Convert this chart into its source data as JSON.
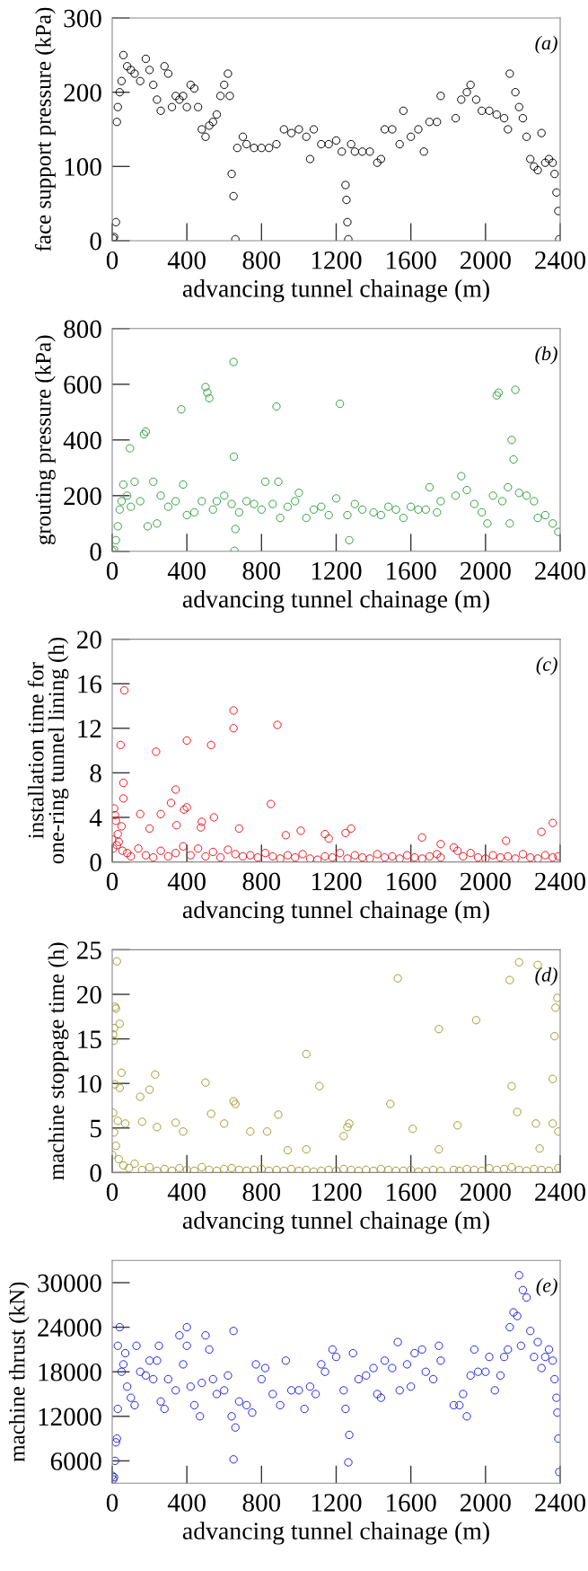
{
  "chart_data": [
    {
      "type": "scatter",
      "xlabel": "advancing tunnel chainage (m)",
      "ylabel": "face support pressure (kPa)",
      "annotations": [
        "(a)"
      ],
      "marker": "circle",
      "xlim": [
        0,
        2400
      ],
      "ylim": [
        0,
        300
      ],
      "xticks": [
        0,
        400,
        800,
        1200,
        1600,
        2000,
        2400
      ],
      "yticks": [
        0,
        100,
        200,
        300
      ],
      "series": [
        {
          "color": "#000000",
          "x": [
            5,
            10,
            20,
            25,
            30,
            40,
            50,
            60,
            80,
            100,
            120,
            150,
            180,
            200,
            220,
            240,
            260,
            280,
            300,
            320,
            340,
            360,
            380,
            400,
            420,
            440,
            460,
            480,
            500,
            520,
            540,
            560,
            580,
            600,
            620,
            630,
            640,
            650,
            660,
            670,
            700,
            720,
            760,
            800,
            840,
            880,
            920,
            960,
            1000,
            1040,
            1060,
            1080,
            1120,
            1160,
            1200,
            1230,
            1250,
            1255,
            1260,
            1265,
            1280,
            1300,
            1340,
            1380,
            1420,
            1440,
            1460,
            1500,
            1540,
            1560,
            1600,
            1640,
            1670,
            1700,
            1740,
            1760,
            1840,
            1870,
            1900,
            1920,
            1950,
            1980,
            2020,
            2060,
            2100,
            2120,
            2130,
            2160,
            2180,
            2200,
            2220,
            2240,
            2260,
            2280,
            2300,
            2320,
            2340,
            2360,
            2370,
            2380,
            2390,
            2395
          ],
          "values": [
            3,
            5,
            25,
            160,
            180,
            200,
            215,
            250,
            235,
            230,
            225,
            215,
            245,
            230,
            210,
            190,
            175,
            235,
            225,
            180,
            195,
            190,
            195,
            180,
            210,
            205,
            180,
            150,
            140,
            155,
            160,
            170,
            195,
            210,
            225,
            195,
            90,
            60,
            2,
            125,
            140,
            130,
            125,
            125,
            125,
            130,
            150,
            145,
            150,
            140,
            110,
            150,
            130,
            130,
            135,
            120,
            75,
            55,
            25,
            2,
            130,
            120,
            120,
            120,
            105,
            110,
            150,
            150,
            130,
            175,
            140,
            150,
            120,
            160,
            160,
            195,
            165,
            190,
            200,
            210,
            190,
            175,
            175,
            170,
            165,
            150,
            225,
            200,
            180,
            165,
            140,
            110,
            100,
            95,
            145,
            105,
            110,
            105,
            90,
            65,
            40,
            2
          ]
        }
      ]
    },
    {
      "type": "scatter",
      "xlabel": "advancing tunnel chainage (m)",
      "ylabel": "grouting pressure (kPa)",
      "annotations": [
        "(b)"
      ],
      "marker": "circle",
      "xlim": [
        0,
        2400
      ],
      "ylim": [
        0,
        800
      ],
      "xticks": [
        0,
        400,
        800,
        1200,
        1600,
        2000,
        2400
      ],
      "yticks": [
        0,
        200,
        400,
        600,
        800
      ],
      "series": [
        {
          "color": "#2e9e3e",
          "x": [
            0,
            10,
            20,
            30,
            40,
            50,
            60,
            80,
            95,
            100,
            120,
            150,
            170,
            180,
            190,
            220,
            240,
            260,
            300,
            340,
            370,
            380,
            400,
            440,
            480,
            500,
            510,
            520,
            540,
            560,
            600,
            640,
            650,
            652,
            655,
            660,
            680,
            720,
            760,
            800,
            820,
            860,
            880,
            890,
            900,
            940,
            980,
            1000,
            1040,
            1080,
            1120,
            1160,
            1200,
            1220,
            1260,
            1270,
            1300,
            1340,
            1400,
            1440,
            1480,
            1520,
            1560,
            1600,
            1640,
            1680,
            1700,
            1740,
            1760,
            1840,
            1870,
            1900,
            1940,
            1980,
            2010,
            2040,
            2060,
            2070,
            2090,
            2120,
            2130,
            2140,
            2150,
            2160,
            2180,
            2220,
            2260,
            2280,
            2320,
            2360,
            2390
          ],
          "values": [
            2,
            5,
            40,
            90,
            150,
            180,
            240,
            200,
            370,
            160,
            250,
            180,
            420,
            430,
            90,
            250,
            100,
            200,
            160,
            180,
            510,
            240,
            130,
            140,
            180,
            590,
            570,
            550,
            150,
            180,
            200,
            170,
            680,
            340,
            2,
            80,
            140,
            180,
            170,
            150,
            250,
            170,
            520,
            250,
            120,
            160,
            180,
            210,
            120,
            150,
            160,
            130,
            190,
            530,
            130,
            40,
            170,
            150,
            140,
            130,
            160,
            150,
            120,
            160,
            150,
            150,
            230,
            140,
            180,
            200,
            270,
            220,
            170,
            140,
            100,
            200,
            560,
            570,
            180,
            230,
            100,
            400,
            330,
            580,
            210,
            200,
            180,
            120,
            130,
            100,
            70
          ]
        }
      ]
    },
    {
      "type": "scatter",
      "xlabel": "advancing tunnel chainage (m)",
      "ylabel": "installation time for\none-ring tunnel lining (h)",
      "annotations": [
        "(c)"
      ],
      "marker": "circle",
      "xlim": [
        0,
        2400
      ],
      "ylim": [
        0,
        20
      ],
      "xticks": [
        0,
        400,
        800,
        1200,
        1600,
        2000,
        2400
      ],
      "yticks": [
        0,
        4,
        8,
        12,
        16,
        20
      ],
      "series": [
        {
          "color": "#e8141a",
          "x": [
            10,
            15,
            20,
            45,
            65,
            60,
            60,
            150,
            200,
            235,
            260,
            315,
            340,
            345,
            385,
            400,
            400,
            475,
            480,
            530,
            545,
            650,
            650,
            680,
            850,
            885,
            930,
            1010,
            1140,
            1160,
            1250,
            1280,
            1660,
            1760,
            2110,
            2300,
            2360,
            0,
            5,
            25,
            30,
            35,
            50,
            55,
            80,
            100,
            140,
            180,
            220,
            260,
            300,
            340,
            380,
            420,
            460,
            500,
            540,
            580,
            620,
            660,
            700,
            740,
            780,
            820,
            860,
            900,
            940,
            980,
            1020,
            1060,
            1100,
            1140,
            1180,
            1220,
            1260,
            1300,
            1340,
            1380,
            1420,
            1460,
            1500,
            1540,
            1580,
            1620,
            1660,
            1700,
            1740,
            1760,
            1830,
            1850,
            1880,
            1920,
            1960,
            2000,
            2040,
            2080,
            2120,
            2160,
            2200,
            2240,
            2280,
            2320,
            2360,
            2390
          ],
          "values": [
            4.8,
            4.2,
            3.7,
            10.5,
            15.4,
            7.1,
            5.7,
            4.3,
            3.0,
            9.9,
            4.3,
            5.3,
            6.5,
            3.3,
            4.7,
            10.9,
            4.9,
            3.1,
            3.6,
            10.5,
            4.0,
            13.6,
            12.0,
            3.0,
            5.2,
            12.3,
            2.4,
            2.8,
            2.5,
            2.1,
            2.6,
            3.0,
            2.2,
            1.6,
            1.9,
            2.7,
            3.5,
            2.0,
            1.2,
            1.5,
            2.5,
            1.8,
            3.2,
            1.0,
            0.8,
            0.5,
            1.2,
            0.6,
            0.4,
            1.0,
            0.5,
            0.8,
            1.4,
            0.6,
            1.2,
            0.5,
            0.9,
            0.4,
            1.1,
            0.7,
            0.5,
            0.6,
            0.4,
            0.8,
            0.5,
            0.3,
            0.6,
            0.4,
            0.7,
            0.3,
            0.2,
            0.5,
            0.4,
            0.8,
            0.3,
            0.6,
            0.4,
            0.3,
            0.7,
            0.4,
            0.5,
            0.3,
            0.6,
            0.4,
            0.3,
            0.5,
            0.7,
            0.4,
            1.3,
            1.0,
            0.5,
            0.8,
            0.4,
            0.3,
            0.6,
            0.4,
            0.5,
            0.3,
            0.7,
            0.4,
            0.3,
            0.6,
            0.4,
            0.5
          ]
        }
      ]
    },
    {
      "type": "scatter",
      "xlabel": "advancing tunnel chainage (m)",
      "ylabel": "machine stoppage time (h)",
      "annotations": [
        "(d)"
      ],
      "marker": "circle",
      "xlim": [
        0,
        2400
      ],
      "ylim": [
        0,
        25
      ],
      "xticks": [
        0,
        400,
        800,
        1200,
        1600,
        2000,
        2400
      ],
      "yticks": [
        0,
        5,
        10,
        15,
        20,
        25
      ],
      "series": [
        {
          "color": "#9b9b2a",
          "x": [
            5,
            8,
            10,
            15,
            20,
            25,
            40,
            50,
            15,
            40,
            5,
            30,
            10,
            70,
            150,
            160,
            200,
            230,
            240,
            340,
            380,
            500,
            530,
            600,
            650,
            660,
            740,
            830,
            890,
            940,
            1040,
            1040,
            1110,
            1240,
            1260,
            1270,
            1490,
            1530,
            1610,
            1750,
            1750,
            1850,
            1950,
            2130,
            2140,
            2170,
            2180,
            2280,
            2270,
            2290,
            2360,
            2370,
            2375,
            2385,
            2390,
            2360,
            0,
            20,
            35,
            60,
            90,
            120,
            160,
            200,
            240,
            280,
            320,
            360,
            400,
            440,
            480,
            520,
            560,
            600,
            640,
            680,
            720,
            760,
            800,
            840,
            880,
            920,
            960,
            1000,
            1040,
            1080,
            1120,
            1160,
            1200,
            1240,
            1280,
            1320,
            1360,
            1400,
            1440,
            1480,
            1520,
            1560,
            1600,
            1640,
            1680,
            1720,
            1760,
            1830,
            1860,
            1900,
            1940,
            1980,
            2020,
            2060,
            2100,
            2140,
            2180,
            2220,
            2260,
            2300,
            2340,
            2390
          ],
          "values": [
            15.5,
            14.8,
            16.2,
            18.6,
            18.4,
            23.7,
            16.7,
            11.2,
            9.9,
            9.5,
            6.7,
            5.8,
            4.5,
            5.5,
            8.5,
            5.7,
            9.3,
            11.0,
            5.1,
            5.6,
            4.6,
            10.1,
            6.6,
            5.5,
            8.0,
            7.7,
            4.6,
            4.6,
            6.5,
            2.5,
            13.3,
            2.6,
            9.7,
            4.1,
            5.1,
            5.5,
            7.7,
            21.8,
            4.9,
            16.1,
            2.6,
            5.3,
            17.1,
            21.6,
            9.7,
            6.8,
            23.6,
            23.3,
            5.5,
            2.7,
            10.5,
            15.3,
            18.5,
            19.6,
            4.6,
            5.5,
            2.0,
            3.0,
            1.5,
            0.8,
            0.5,
            1.0,
            0.3,
            0.6,
            0.2,
            0.4,
            0.2,
            0.5,
            0.3,
            0.2,
            0.6,
            0.3,
            0.2,
            0.4,
            0.5,
            0.3,
            0.2,
            0.3,
            0.4,
            0.2,
            0.3,
            0.2,
            0.4,
            0.2,
            0.3,
            0.1,
            0.2,
            0.3,
            0.2,
            0.4,
            0.3,
            0.2,
            0.3,
            0.2,
            0.4,
            0.3,
            0.2,
            0.2,
            0.3,
            0.1,
            0.2,
            0.3,
            0.2,
            0.3,
            0.2,
            0.4,
            0.3,
            0.2,
            0.5,
            0.3,
            0.4,
            0.6,
            0.3,
            0.2,
            0.4,
            0.3,
            0.2,
            0.5
          ]
        }
      ]
    },
    {
      "type": "scatter",
      "xlabel": "advancing tunnel chainage (m)",
      "ylabel": "machine thrust (kN)",
      "annotations": [
        "(e)"
      ],
      "marker": "circle",
      "xlim": [
        0,
        2400
      ],
      "ylim": [
        3000,
        33000
      ],
      "xticks": [
        0,
        400,
        800,
        1200,
        1600,
        2000,
        2400
      ],
      "yticks": [
        6000,
        12000,
        18000,
        24000,
        30000
      ],
      "series": [
        {
          "color": "#2020e0",
          "x": [
            0,
            5,
            10,
            15,
            20,
            25,
            30,
            40,
            30,
            50,
            60,
            70,
            80,
            100,
            120,
            130,
            150,
            180,
            200,
            220,
            240,
            250,
            260,
            280,
            300,
            340,
            360,
            380,
            400,
            400,
            420,
            440,
            470,
            480,
            500,
            520,
            540,
            560,
            600,
            620,
            640,
            650,
            650,
            660,
            680,
            720,
            750,
            770,
            800,
            820,
            860,
            900,
            930,
            960,
            1000,
            1030,
            1060,
            1090,
            1120,
            1140,
            1180,
            1200,
            1240,
            1250,
            1270,
            1265,
            1290,
            1320,
            1360,
            1400,
            1420,
            1440,
            1460,
            1500,
            1530,
            1540,
            1580,
            1600,
            1620,
            1660,
            1680,
            1720,
            1750,
            1760,
            1830,
            1860,
            1880,
            1900,
            1920,
            1940,
            1960,
            2000,
            2020,
            2050,
            2080,
            2100,
            2120,
            2130,
            2150,
            2170,
            2180,
            2190,
            2200,
            2220,
            2240,
            2260,
            2280,
            2300,
            2320,
            2340,
            2360,
            2370,
            2380,
            2385,
            2390,
            2395
          ],
          "values": [
            4000,
            3500,
            3800,
            6000,
            8500,
            9000,
            13000,
            24000,
            21500,
            18000,
            19000,
            20500,
            16000,
            14500,
            13500,
            21500,
            18000,
            17500,
            19500,
            17000,
            19500,
            21500,
            14000,
            13000,
            17000,
            15500,
            22900,
            19000,
            24000,
            21500,
            16000,
            13500,
            12000,
            16500,
            22900,
            21000,
            17000,
            15000,
            15500,
            17500,
            12000,
            23500,
            6200,
            10500,
            14000,
            13500,
            12500,
            19000,
            17000,
            18500,
            15000,
            13500,
            19500,
            15500,
            15500,
            13000,
            16000,
            15000,
            19000,
            18000,
            21000,
            20000,
            15500,
            13000,
            9500,
            5800,
            20500,
            17000,
            17500,
            18500,
            15000,
            14500,
            19500,
            18500,
            22000,
            15500,
            19000,
            16000,
            20500,
            21000,
            18000,
            17000,
            21500,
            19500,
            13500,
            13500,
            15000,
            12000,
            17500,
            21000,
            18000,
            18000,
            20000,
            15500,
            17500,
            20000,
            21000,
            24000,
            26000,
            25500,
            31000,
            21500,
            29000,
            28000,
            23500,
            20000,
            22000,
            18500,
            20000,
            21000,
            19500,
            17000,
            14500,
            12500,
            9000,
            4500
          ]
        }
      ]
    }
  ]
}
